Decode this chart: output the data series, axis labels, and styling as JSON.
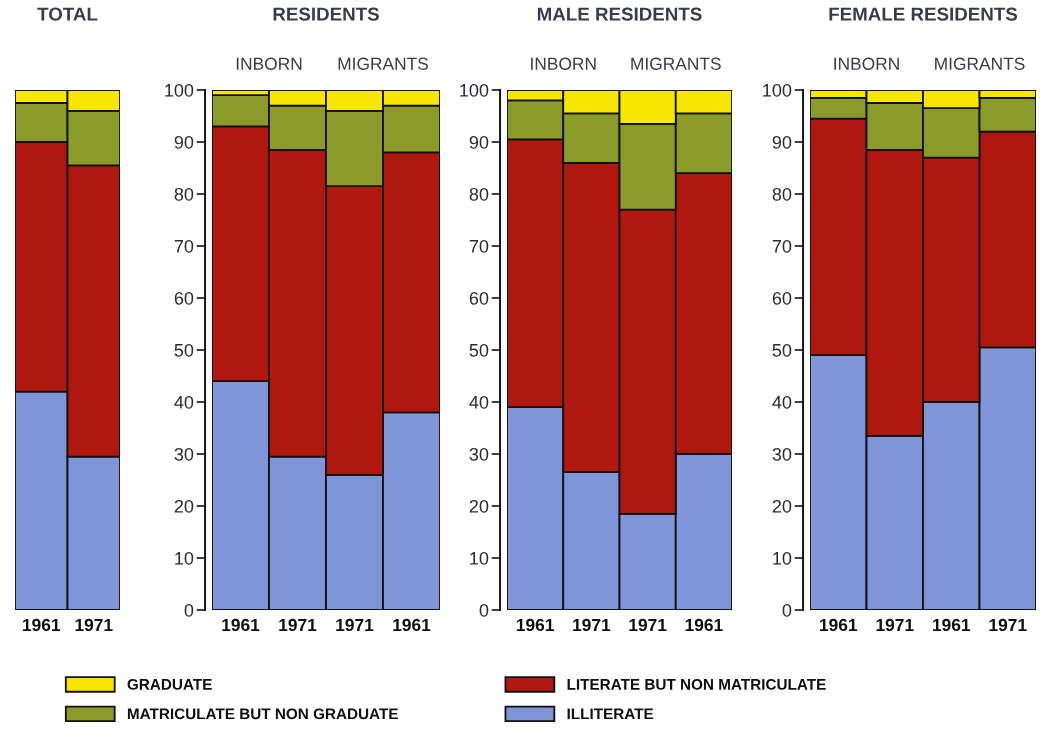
{
  "chart_data": [
    {
      "type": "bar",
      "title": "TOTAL",
      "stacked": true,
      "legend": "bottom",
      "tick_labels": "x",
      "ylim": [
        0,
        100
      ],
      "categories": [
        "1961",
        "1971"
      ],
      "series": [
        {
          "name": "ILLITERATE",
          "color": "#7f95d8",
          "values": [
            42,
            29.5
          ]
        },
        {
          "name": "LITERATE BUT NON MATRICULATE",
          "color": "#b0170f",
          "values": [
            48,
            56
          ]
        },
        {
          "name": "MATRICULATE BUT NON GRADUATE",
          "color": "#8a9b2a",
          "values": [
            7.5,
            10.5
          ]
        },
        {
          "name": "GRADUATE",
          "color": "#f7e600",
          "values": [
            2.5,
            4
          ]
        }
      ]
    },
    {
      "type": "bar",
      "title": "RESIDENTS",
      "annotations": [
        "INBORN",
        "MIGRANTS"
      ],
      "stacked": true,
      "ylim": [
        0,
        100
      ],
      "yticks": [
        0,
        10,
        20,
        30,
        40,
        50,
        60,
        70,
        80,
        90,
        100
      ],
      "categories": [
        "1961",
        "1971",
        "1971",
        "1961"
      ],
      "series": [
        {
          "color": "#7f95d8",
          "values": [
            44,
            29.5,
            26,
            38
          ]
        },
        {
          "color": "#b0170f",
          "values": [
            49,
            59,
            55.5,
            50
          ]
        },
        {
          "color": "#8a9b2a",
          "values": [
            6,
            8.5,
            14.5,
            9
          ]
        },
        {
          "color": "#f7e600",
          "values": [
            1,
            3,
            4,
            3
          ]
        }
      ]
    },
    {
      "type": "bar",
      "title": "MALE RESIDENTS",
      "annotations": [
        "INBORN",
        "MIGRANTS"
      ],
      "stacked": true,
      "ylim": [
        0,
        100
      ],
      "yticks": [
        0,
        10,
        20,
        30,
        40,
        50,
        60,
        70,
        80,
        90,
        100
      ],
      "categories": [
        "1961",
        "1971",
        "1971",
        "1961"
      ],
      "series": [
        {
          "color": "#7f95d8",
          "values": [
            39,
            26.5,
            18.5,
            30
          ]
        },
        {
          "color": "#b0170f",
          "values": [
            51.5,
            59.5,
            58.5,
            54
          ]
        },
        {
          "color": "#8a9b2a",
          "values": [
            7.5,
            9.5,
            16.5,
            11.5
          ]
        },
        {
          "color": "#f7e600",
          "values": [
            2,
            4.5,
            6.5,
            4.5
          ]
        }
      ]
    },
    {
      "type": "bar",
      "title": "FEMALE RESIDENTS",
      "annotations": [
        "INBORN",
        "MIGRANTS"
      ],
      "stacked": true,
      "ylim": [
        0,
        100
      ],
      "yticks": [
        0,
        10,
        20,
        30,
        40,
        50,
        60,
        70,
        80,
        90,
        100
      ],
      "categories": [
        "1961",
        "1971",
        "1961",
        "1971"
      ],
      "series": [
        {
          "color": "#7f95d8",
          "values": [
            49,
            33.5,
            40,
            50.5
          ]
        },
        {
          "color": "#b0170f",
          "values": [
            45.5,
            55,
            47,
            41.5
          ]
        },
        {
          "color": "#8a9b2a",
          "values": [
            4,
            9,
            9.5,
            6.5
          ]
        },
        {
          "color": "#f7e600",
          "values": [
            1.5,
            2.5,
            3.5,
            1.5
          ]
        }
      ]
    }
  ]
}
